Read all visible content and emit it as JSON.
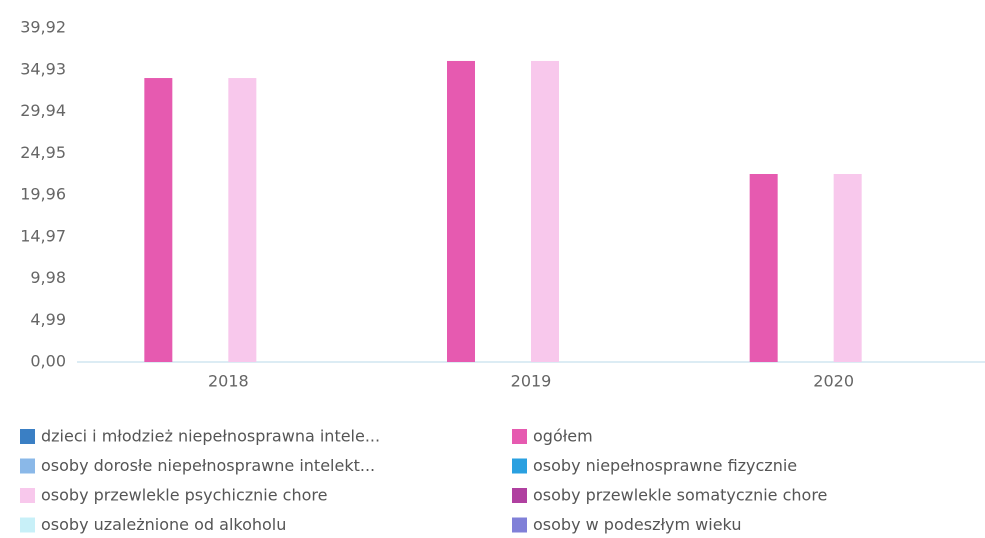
{
  "chart_data": {
    "type": "bar",
    "categories": [
      "2018",
      "2019",
      "2020"
    ],
    "series": [
      {
        "name": "dzieci i młodzież niepełnosprawna intele...",
        "color": "#3a7fc4",
        "values": [
          0,
          0,
          0
        ]
      },
      {
        "name": "ogółem",
        "color": "#e65ab0",
        "values": [
          33.94,
          35.98,
          22.47
        ]
      },
      {
        "name": "osoby dorosłe niepełnosprawne intelekt...",
        "color": "#8ab8e8",
        "values": [
          0,
          0,
          0
        ]
      },
      {
        "name": "osoby niepełnosprawne fizycznie",
        "color": "#2aa0e0",
        "values": [
          0,
          0,
          0
        ]
      },
      {
        "name": "osoby przewlekle psychicznie chore",
        "color": "#f8c8ec",
        "values": [
          33.94,
          35.98,
          22.47
        ]
      },
      {
        "name": "osoby przewlekle somatycznie chore",
        "color": "#b040a0",
        "values": [
          0,
          0,
          0
        ]
      },
      {
        "name": "osoby uzależnione od alkoholu",
        "color": "#c8f0f8",
        "values": [
          0,
          0,
          0
        ]
      },
      {
        "name": "osoby w podeszłym wieku",
        "color": "#8080d8",
        "values": [
          0,
          0,
          0
        ]
      }
    ],
    "ylim": [
      0,
      39.92
    ],
    "yticks": [
      {
        "value": 0,
        "label": "0,00"
      },
      {
        "value": 4.99,
        "label": "4,99"
      },
      {
        "value": 9.98,
        "label": "9,98"
      },
      {
        "value": 14.97,
        "label": "14,97"
      },
      {
        "value": 19.96,
        "label": "19,96"
      },
      {
        "value": 24.95,
        "label": "24,95"
      },
      {
        "value": 29.94,
        "label": "29,94"
      },
      {
        "value": 34.93,
        "label": "34,93"
      },
      {
        "value": 39.92,
        "label": "39,92"
      }
    ],
    "grid": false
  }
}
